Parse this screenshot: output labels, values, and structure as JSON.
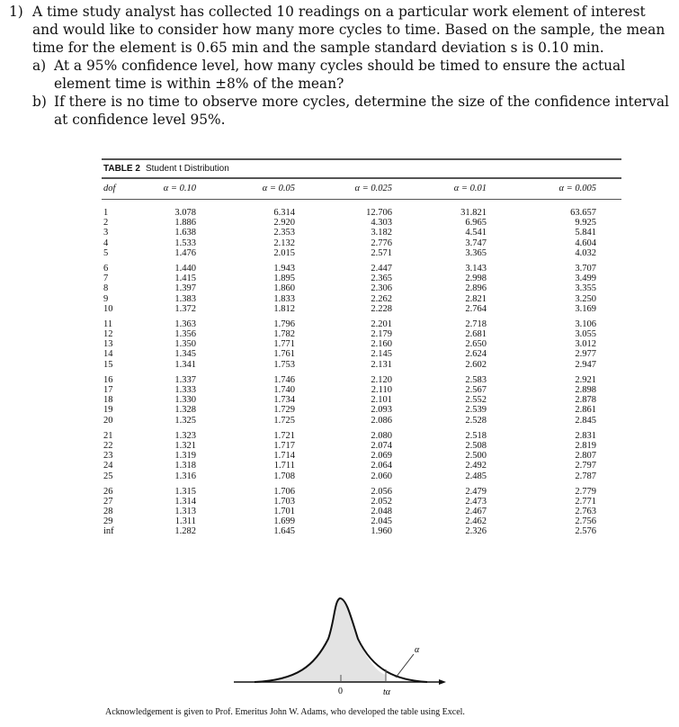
{
  "question": {
    "number": "1)",
    "text": "A time study analyst has collected 10 readings on a particular work element of interest and would like to consider how many more cycles to time. Based on the sample, the mean time for the element is 0.65 min and the sample standard deviation s is 0.10 min.",
    "parts": [
      {
        "label": "a)",
        "text": "At a 95% confidence level, how many cycles should be timed to ensure the actual element time is within ±8% of the mean?"
      },
      {
        "label": "b)",
        "text": "If there is no time to observe more cycles, determine the size of the confidence interval at confidence level 95%."
      }
    ]
  },
  "table": {
    "label": "TABLE 2",
    "title": "Student t Distribution",
    "headers": [
      "dof",
      "α = 0.10",
      "α = 0.05",
      "α = 0.025",
      "α = 0.01",
      "α = 0.005"
    ],
    "rows": [
      [
        "1",
        "3.078",
        "6.314",
        "12.706",
        "31.821",
        "63.657"
      ],
      [
        "2",
        "1.886",
        "2.920",
        "4.303",
        "6.965",
        "9.925"
      ],
      [
        "3",
        "1.638",
        "2.353",
        "3.182",
        "4.541",
        "5.841"
      ],
      [
        "4",
        "1.533",
        "2.132",
        "2.776",
        "3.747",
        "4.604"
      ],
      [
        "5",
        "1.476",
        "2.015",
        "2.571",
        "3.365",
        "4.032"
      ],
      [
        "6",
        "1.440",
        "1.943",
        "2.447",
        "3.143",
        "3.707"
      ],
      [
        "7",
        "1.415",
        "1.895",
        "2.365",
        "2.998",
        "3.499"
      ],
      [
        "8",
        "1.397",
        "1.860",
        "2.306",
        "2.896",
        "3.355"
      ],
      [
        "9",
        "1.383",
        "1.833",
        "2.262",
        "2.821",
        "3.250"
      ],
      [
        "10",
        "1.372",
        "1.812",
        "2.228",
        "2.764",
        "3.169"
      ],
      [
        "11",
        "1.363",
        "1.796",
        "2.201",
        "2.718",
        "3.106"
      ],
      [
        "12",
        "1.356",
        "1.782",
        "2.179",
        "2.681",
        "3.055"
      ],
      [
        "13",
        "1.350",
        "1.771",
        "2.160",
        "2.650",
        "3.012"
      ],
      [
        "14",
        "1.345",
        "1.761",
        "2.145",
        "2.624",
        "2.977"
      ],
      [
        "15",
        "1.341",
        "1.753",
        "2.131",
        "2.602",
        "2.947"
      ],
      [
        "16",
        "1.337",
        "1.746",
        "2.120",
        "2.583",
        "2.921"
      ],
      [
        "17",
        "1.333",
        "1.740",
        "2.110",
        "2.567",
        "2.898"
      ],
      [
        "18",
        "1.330",
        "1.734",
        "2.101",
        "2.552",
        "2.878"
      ],
      [
        "19",
        "1.328",
        "1.729",
        "2.093",
        "2.539",
        "2.861"
      ],
      [
        "20",
        "1.325",
        "1.725",
        "2.086",
        "2.528",
        "2.845"
      ],
      [
        "21",
        "1.323",
        "1.721",
        "2.080",
        "2.518",
        "2.831"
      ],
      [
        "22",
        "1.321",
        "1.717",
        "2.074",
        "2.508",
        "2.819"
      ],
      [
        "23",
        "1.319",
        "1.714",
        "2.069",
        "2.500",
        "2.807"
      ],
      [
        "24",
        "1.318",
        "1.711",
        "2.064",
        "2.492",
        "2.797"
      ],
      [
        "25",
        "1.316",
        "1.708",
        "2.060",
        "2.485",
        "2.787"
      ],
      [
        "26",
        "1.315",
        "1.706",
        "2.056",
        "2.479",
        "2.779"
      ],
      [
        "27",
        "1.314",
        "1.703",
        "2.052",
        "2.473",
        "2.771"
      ],
      [
        "28",
        "1.313",
        "1.701",
        "2.048",
        "2.467",
        "2.763"
      ],
      [
        "29",
        "1.311",
        "1.699",
        "2.045",
        "2.462",
        "2.756"
      ],
      [
        "inf",
        "1.282",
        "1.645",
        "1.960",
        "2.326",
        "2.576"
      ]
    ]
  },
  "figure": {
    "zero_label": "0",
    "t_label": "tα",
    "alpha_label": "α"
  },
  "acknowledgement": "Acknowledgement is given to Prof. Emeritus John W. Adams, who developed the table using Excel."
}
